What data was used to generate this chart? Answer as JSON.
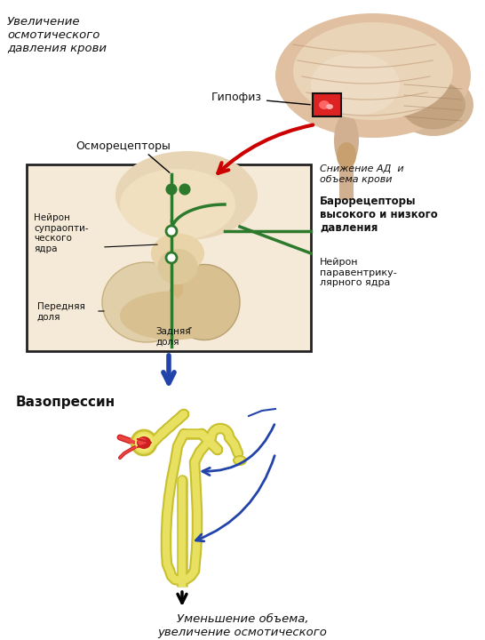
{
  "bg_color": "#ffffff",
  "texts": {
    "gipofiz": "Гипофиз",
    "uvelichenie": "Увеличение\nосмотического\nдавления крови",
    "osmoretseptory": "Осморецепторы",
    "snijenie": "Снижение АД  и\nобъема крови",
    "baroreseptory": "Барорецепторы\nвысокого и низкого\nдавления",
    "nejron_para": "Нейрон\nпаравентрику-\nлярного ядра",
    "nejron_supra": "Нейрон\nсупраопти-\nческого\nядра",
    "perednyaya": "Передняя\nдоля",
    "zadnyaya": "Задняя\nдоля",
    "vazopressin": "Вазопрессин",
    "umenshenie": "Уменьшение объема,\nувеличение осмотического\nдавления мочи"
  },
  "colors": {
    "red_arrow": "#cc0000",
    "blue_arrow": "#2244aa",
    "green": "#2d7a2d",
    "box_bg": "#f5ead8",
    "box_border": "#222222",
    "brain_fill": "#e0c0a0",
    "brain_dark": "#c8a888",
    "brain_stem": "#d0b090",
    "cerebellum": "#d4b898",
    "pituitary_box_fill": "#ee3333",
    "kidney_yellow": "#e8e060",
    "kidney_outline": "#c8c030",
    "kidney_red": "#dd3333",
    "kidney_red2": "#ee5555",
    "text_dark": "#111111"
  },
  "layout": {
    "fig_width": 5.46,
    "fig_height": 7.2,
    "dpi": 100
  }
}
